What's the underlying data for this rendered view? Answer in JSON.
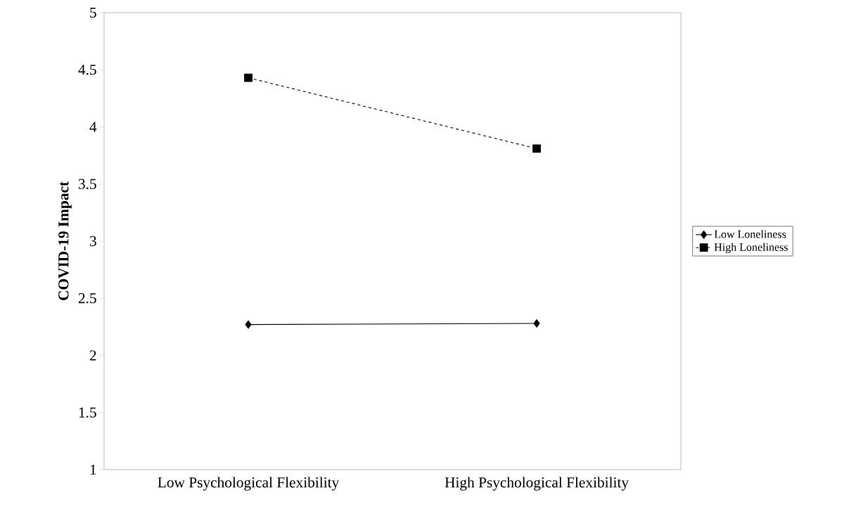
{
  "chart_data": {
    "type": "line",
    "ylabel": "COVID-19 Impact",
    "categories": [
      "Low Psychological Flexibility",
      "High Psychological Flexibility"
    ],
    "series": [
      {
        "name": "Low Loneliness",
        "color": "#000000",
        "values": [
          2.27,
          2.28
        ],
        "marker": "diamond",
        "line_style": "solid"
      },
      {
        "name": "High Loneliness",
        "color": "#000000",
        "values": [
          4.43,
          3.81
        ],
        "marker": "square",
        "line_style": "dashed"
      }
    ],
    "ylim": [
      1,
      5
    ],
    "yticks": [
      1,
      1.5,
      2,
      2.5,
      3,
      3.5,
      4,
      4.5,
      5
    ],
    "grid": false,
    "legend": "right"
  }
}
